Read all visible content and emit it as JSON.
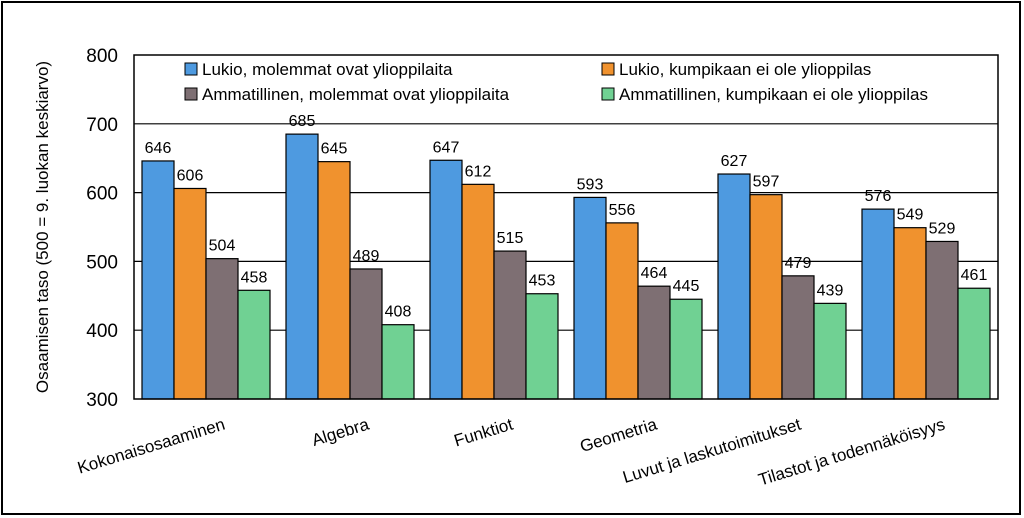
{
  "chart_data": {
    "type": "bar",
    "ylabel": "Osaamisen taso (500 = 9. luokan keskiarvo)",
    "ylim": [
      300,
      800
    ],
    "yticks": [
      300,
      400,
      500,
      600,
      700,
      800
    ],
    "grid": true,
    "legend_position": "top",
    "categories": [
      "Kokonaisosaaminen",
      "Algebra",
      "Funktiot",
      "Geometria",
      "Luvut ja laskutoimitukset",
      "Tilastot ja todennäköisyys"
    ],
    "series": [
      {
        "name": "Lukio, molemmat ovat ylioppilaita",
        "color": "#4e9ae0",
        "values": [
          646,
          685,
          647,
          593,
          627,
          576
        ]
      },
      {
        "name": "Lukio, kumpikaan ei ole ylioppilas",
        "color": "#f0922e",
        "values": [
          606,
          645,
          612,
          556,
          597,
          549
        ]
      },
      {
        "name": "Ammatillinen, molemmat ovat ylioppilaita",
        "color": "#7e6f73",
        "values": [
          504,
          489,
          515,
          464,
          479,
          529
        ]
      },
      {
        "name": "Ammatillinen, kumpikaan ei ole ylioppilas",
        "color": "#70d193",
        "values": [
          458,
          408,
          453,
          445,
          439,
          461
        ]
      }
    ]
  }
}
